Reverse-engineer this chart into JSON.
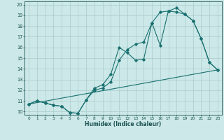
{
  "xlabel": "Humidex (Indice chaleur)",
  "bg_color": "#cce8e8",
  "grid_color": "#aacccc",
  "line_color": "#1a7070",
  "spine_color": "#1a5050",
  "xlim": [
    -0.5,
    23.5
  ],
  "ylim": [
    9.7,
    20.3
  ],
  "xticks": [
    0,
    1,
    2,
    3,
    4,
    5,
    6,
    7,
    8,
    9,
    10,
    11,
    12,
    13,
    14,
    15,
    16,
    17,
    18,
    19,
    20,
    21,
    22,
    23
  ],
  "yticks": [
    10,
    11,
    12,
    13,
    14,
    15,
    16,
    17,
    18,
    19,
    20
  ],
  "line1_x": [
    0,
    1,
    2,
    3,
    4,
    5,
    6,
    7,
    8,
    9,
    10,
    11,
    12,
    13,
    14,
    15,
    16,
    17,
    18,
    19,
    20,
    21,
    22,
    23
  ],
  "line1_y": [
    10.7,
    11.0,
    10.8,
    10.6,
    10.5,
    9.9,
    9.85,
    11.1,
    12.2,
    12.5,
    13.5,
    16.0,
    15.5,
    14.8,
    14.9,
    18.3,
    16.2,
    19.4,
    19.3,
    19.1,
    18.5,
    16.8,
    14.6,
    13.9
  ],
  "line2_x": [
    0,
    1,
    2,
    3,
    4,
    5,
    6,
    7,
    8,
    9,
    10,
    11,
    12,
    13,
    14,
    15,
    16,
    17,
    18,
    19,
    20,
    21,
    22,
    23
  ],
  "line2_y": [
    10.7,
    11.0,
    10.8,
    10.6,
    10.5,
    9.9,
    9.85,
    11.1,
    12.0,
    12.2,
    12.8,
    14.8,
    15.8,
    16.3,
    16.5,
    18.3,
    19.3,
    19.4,
    19.7,
    19.1,
    18.5,
    16.8,
    14.6,
    13.9
  ],
  "line3_x": [
    0,
    23
  ],
  "line3_y": [
    10.7,
    13.9
  ]
}
